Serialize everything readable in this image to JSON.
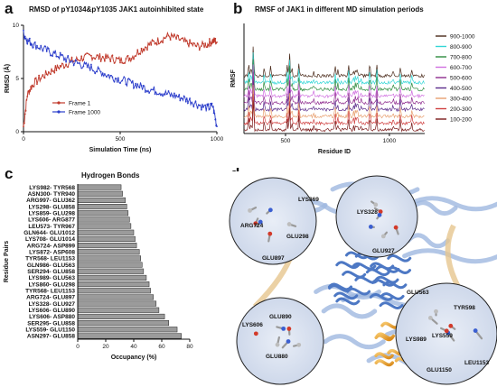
{
  "panels": {
    "a": {
      "label": "a",
      "title": "RMSD of pY1034&pY1035 JAK1 autoinhibited state"
    },
    "b": {
      "label": "b",
      "title": "RMSF of JAK1 in different MD simulation periods"
    },
    "c": {
      "label": "c",
      "title": "Hydrogen  Bonds"
    },
    "d": {
      "label": "d"
    }
  },
  "chart_data": [
    {
      "id": "a",
      "type": "line",
      "title": "RMSD of pY1034&pY1035 JAK1 autoinhibited state",
      "xlabel": "Simulation Time (ns)",
      "ylabel": "RMSD (Å)",
      "xlim": [
        0,
        1000
      ],
      "ylim": [
        0,
        10
      ],
      "xticks": [
        0,
        500,
        1000
      ],
      "yticks": [
        0,
        5,
        10
      ],
      "legend": "left-middle",
      "series": [
        {
          "name": "Frame 1",
          "color": "#c0392b",
          "x": [
            0,
            20,
            50,
            100,
            150,
            200,
            250,
            300,
            350,
            400,
            450,
            500,
            550,
            600,
            650,
            700,
            750,
            800,
            850,
            900,
            950,
            980,
            1000
          ],
          "y": [
            0.5,
            3.5,
            4.5,
            5.2,
            5.8,
            6.2,
            6.6,
            6.9,
            7.1,
            7.0,
            6.9,
            6.7,
            6.9,
            7.6,
            8.2,
            8.6,
            9.0,
            8.7,
            8.3,
            8.0,
            8.2,
            8.6,
            8.4
          ]
        },
        {
          "name": "Frame 1000",
          "color": "#2c3ecb",
          "x": [
            0,
            20,
            50,
            100,
            150,
            200,
            250,
            300,
            350,
            400,
            450,
            500,
            550,
            600,
            650,
            700,
            750,
            800,
            850,
            900,
            950,
            980,
            1000
          ],
          "y": [
            9.2,
            8.6,
            8.2,
            7.8,
            7.4,
            7.0,
            6.6,
            6.3,
            6.0,
            5.6,
            5.2,
            4.9,
            4.6,
            4.3,
            4.0,
            3.8,
            3.5,
            3.3,
            3.0,
            2.6,
            2.2,
            2.4,
            0.5
          ]
        }
      ]
    },
    {
      "id": "b",
      "type": "line",
      "title": "RMSF of JAK1 in different MD simulation periods",
      "xlabel": "Residue ID",
      "ylabel": "RMSF",
      "xticks": [
        500,
        1000
      ],
      "legend": "right",
      "series": [
        {
          "name": "900-1000",
          "color": "#4a2a1a"
        },
        {
          "name": "800-900",
          "color": "#33d6d6"
        },
        {
          "name": "700-800",
          "color": "#2e8b3e"
        },
        {
          "name": "600-700",
          "color": "#d070e0"
        },
        {
          "name": "500-600",
          "color": "#8e2b8e"
        },
        {
          "name": "400-500",
          "color": "#5a2a8a"
        },
        {
          "name": "300-400",
          "color": "#e8a070"
        },
        {
          "name": "200-300",
          "color": "#d04040"
        },
        {
          "name": "100-200",
          "color": "#7a1a1a"
        }
      ]
    },
    {
      "id": "c",
      "type": "bar",
      "orientation": "horizontal",
      "title": "Hydrogen  Bonds",
      "xlabel": "Occupancy (%)",
      "ylabel": "Residue Pairs",
      "xlim": [
        0,
        80
      ],
      "xticks": [
        0,
        20,
        40,
        60,
        80
      ],
      "categories": [
        "LYS982- TYR568",
        "ASN300- TYR940",
        "ARG997- GLU362",
        "LYS298- GLU858",
        "LYS859- GLU298",
        "LYS606- ARG877",
        "LEU573- TYR967",
        "GLN644- GLU1012",
        "LYS708- GLU1014",
        "ARG724- ASP899",
        "LYS872- ASP608",
        "TYR568- LEU1153",
        "GLN986- GLU563",
        "SER294- GLU858",
        "LYS989- GLU563",
        "LYS860- GLU298",
        "TYR568- LEU1153",
        "ARG724- GLU897",
        "LYS328- GLU927",
        "LYS606- GLU890",
        "LYS606- ASP880",
        "SER295- GLU858",
        "LYS559- GLU1150",
        "ASN297- GLU858"
      ],
      "values": [
        31,
        32,
        34,
        35,
        36,
        37,
        38,
        40,
        41,
        42,
        44,
        45,
        46,
        47,
        49,
        51,
        52,
        54,
        56,
        58,
        62,
        65,
        71,
        74
      ]
    }
  ],
  "structure": {
    "labels": [
      "LYS869",
      "ARG724",
      "GLU298",
      "GLU897",
      "LYS328",
      "GLU927",
      "GLU563",
      "TYR598",
      "LYS559",
      "LYS989",
      "LEU1153",
      "GLU1150",
      "LYS606",
      "GLU890",
      "GLU880"
    ]
  }
}
